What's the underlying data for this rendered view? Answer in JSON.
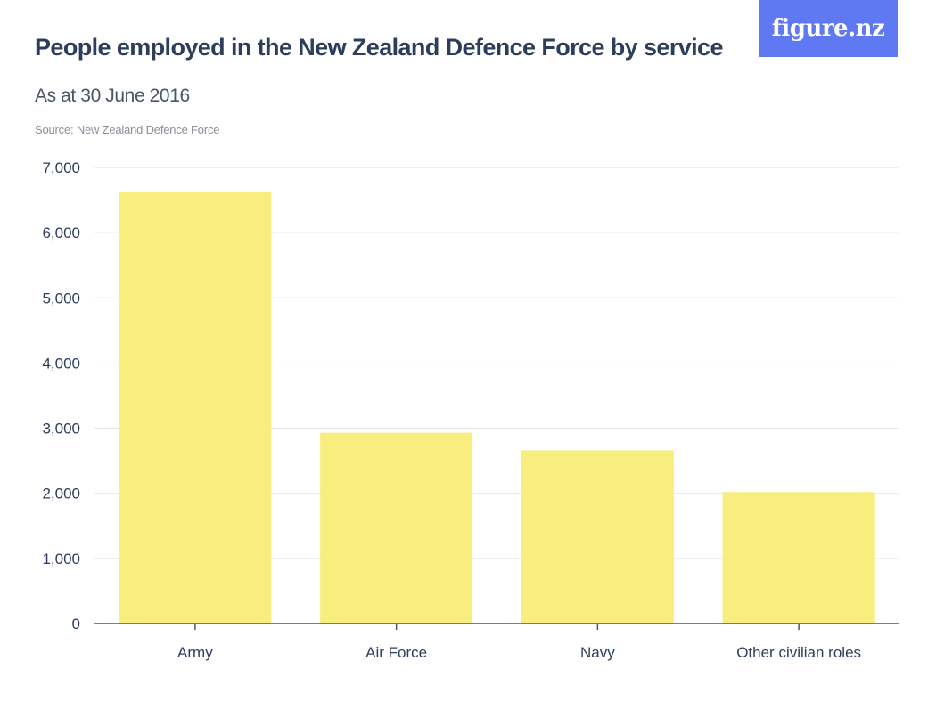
{
  "logo": {
    "text": "figure.nz"
  },
  "header": {
    "title": "People employed in the New Zealand Defence Force by service",
    "subtitle": "As at 30 June 2016",
    "source": "Source: New Zealand Defence Force"
  },
  "colors": {
    "bar": "#f8ee7f",
    "grid": "#e3e3e3",
    "axis": "#555555",
    "text": "#2c3e5c",
    "logo_bg": "#5f79f2"
  },
  "chart_data": {
    "type": "bar",
    "categories": [
      "Army",
      "Air Force",
      "Navy",
      "Other civilian roles"
    ],
    "values": [
      6630,
      2930,
      2660,
      2020
    ],
    "ylim": [
      0,
      7000
    ],
    "yticks": [
      0,
      1000,
      2000,
      3000,
      4000,
      5000,
      6000,
      7000
    ],
    "ytick_labels": [
      "0",
      "1,000",
      "2,000",
      "3,000",
      "4,000",
      "5,000",
      "6,000",
      "7,000"
    ],
    "title": "People employed in the New Zealand Defence Force by service",
    "subtitle": "As at 30 June 2016",
    "xlabel": "",
    "ylabel": "",
    "grid": true,
    "legend": "none"
  }
}
